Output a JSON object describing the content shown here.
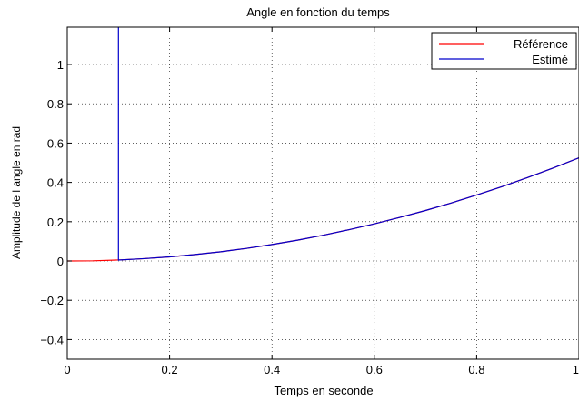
{
  "chart_data": {
    "type": "line",
    "title": "Angle en fonction du temps",
    "xlabel": "Temps en seconde",
    "ylabel": "Amplitude de l angle en rad",
    "xlim": [
      0,
      1
    ],
    "ylim": [
      -0.5,
      1.19
    ],
    "x_ticks": [
      0,
      0.2,
      0.4,
      0.6,
      0.8,
      1
    ],
    "x_tick_labels": [
      "0",
      "0.2",
      "0.4",
      "0.6",
      "0.8",
      "1"
    ],
    "y_ticks": [
      -0.4,
      -0.2,
      0,
      0.2,
      0.4,
      0.6,
      0.8,
      1
    ],
    "y_tick_labels": [
      "−0.4",
      "−0.2",
      "0",
      "0.2",
      "0.4",
      "0.6",
      "0.8",
      "1"
    ],
    "grid": true,
    "legend_position": "top-right",
    "series": [
      {
        "name": "Référence",
        "color": "#ff0000",
        "x": [
          0,
          0.05,
          0.1,
          0.15,
          0.2,
          0.25,
          0.3,
          0.35,
          0.4,
          0.45,
          0.5,
          0.55,
          0.6,
          0.65,
          0.7,
          0.75,
          0.8,
          0.85,
          0.9,
          0.95,
          1.0
        ],
        "y": [
          0,
          0.001,
          0.005,
          0.012,
          0.021,
          0.033,
          0.047,
          0.064,
          0.084,
          0.106,
          0.131,
          0.159,
          0.189,
          0.222,
          0.257,
          0.295,
          0.336,
          0.379,
          0.425,
          0.474,
          0.525
        ]
      },
      {
        "name": "Estimé",
        "color": "#0000cc",
        "x": [
          0.1,
          0.1,
          0.1,
          0.15,
          0.2,
          0.25,
          0.3,
          0.35,
          0.4,
          0.45,
          0.5,
          0.55,
          0.6,
          0.65,
          0.7,
          0.75,
          0.8,
          0.85,
          0.9,
          0.95,
          1.0
        ],
        "y": [
          1.19,
          1.19,
          0.005,
          0.012,
          0.021,
          0.033,
          0.047,
          0.064,
          0.084,
          0.106,
          0.131,
          0.159,
          0.189,
          0.222,
          0.257,
          0.295,
          0.336,
          0.379,
          0.425,
          0.474,
          0.525
        ]
      }
    ]
  }
}
